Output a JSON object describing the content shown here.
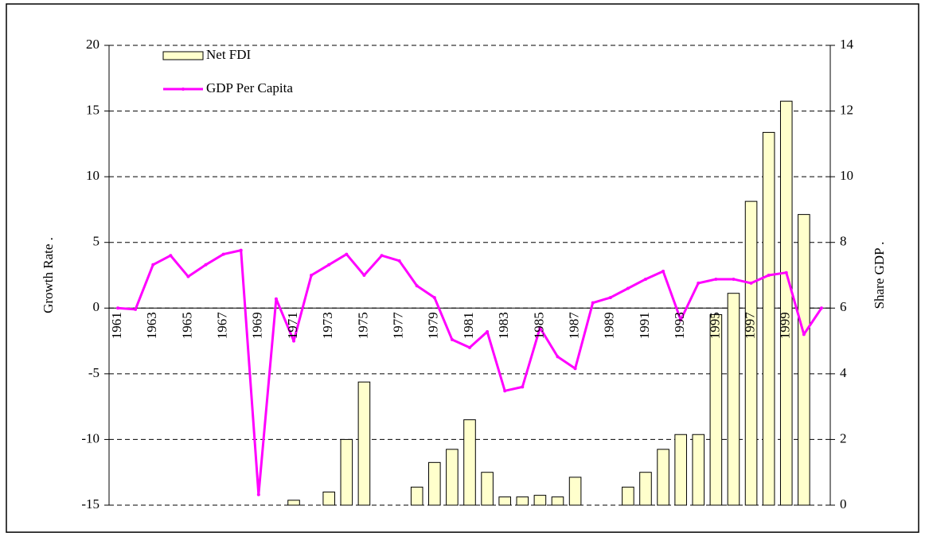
{
  "chart_data": {
    "type": "bar",
    "x_title": null,
    "y_title": "Growth Rate .",
    "y2_title": "Share GDP .",
    "categories": [
      "1961",
      null,
      "1963",
      null,
      "1965",
      null,
      "1967",
      null,
      "1969",
      null,
      "1971",
      null,
      "1973",
      null,
      "1975",
      null,
      "1977",
      null,
      "1979",
      null,
      "1981",
      null,
      "1983",
      null,
      "1985",
      null,
      "1987",
      null,
      "1989",
      null,
      "1991",
      null,
      "1993",
      null,
      "1995",
      null,
      "1997",
      null,
      "1999",
      null,
      null
    ],
    "series": [
      {
        "name": "Net FDI",
        "type": "bar",
        "axis": "y2",
        "color": "#ffffcc",
        "values": [
          null,
          null,
          null,
          null,
          null,
          null,
          null,
          null,
          null,
          null,
          0.15,
          null,
          0.4,
          2.0,
          3.75,
          null,
          null,
          0.55,
          1.3,
          1.7,
          2.6,
          1.0,
          0.25,
          0.25,
          0.3,
          0.25,
          0.85,
          null,
          null,
          0.55,
          1.0,
          1.7,
          2.15,
          2.15,
          5.8,
          6.45,
          9.25,
          11.35,
          12.3,
          8.85,
          null
        ]
      },
      {
        "name": "GDP Per Capita",
        "type": "line",
        "axis": "y",
        "color": "#ff00ff",
        "values": [
          0.0,
          -0.1,
          3.3,
          4.0,
          2.4,
          3.3,
          4.1,
          4.4,
          -14.2,
          0.7,
          -2.5,
          2.5,
          3.3,
          4.1,
          2.5,
          4.0,
          3.6,
          1.7,
          0.8,
          -2.4,
          -3.0,
          -1.8,
          -6.3,
          -6.0,
          -1.5,
          -3.7,
          -4.6,
          0.4,
          0.8,
          1.5,
          2.2,
          2.8,
          -0.9,
          1.9,
          2.2,
          2.2,
          1.9,
          2.5,
          2.7,
          -2.0,
          0.0
        ]
      }
    ],
    "ylim": [
      -15,
      20
    ],
    "yticks": [
      -15,
      -10,
      -5,
      0,
      5,
      10,
      15,
      20
    ],
    "y2lim": [
      0,
      14
    ],
    "y2ticks": [
      0,
      2,
      4,
      6,
      8,
      10,
      12,
      14
    ],
    "grid": true,
    "legend": "top-left"
  }
}
